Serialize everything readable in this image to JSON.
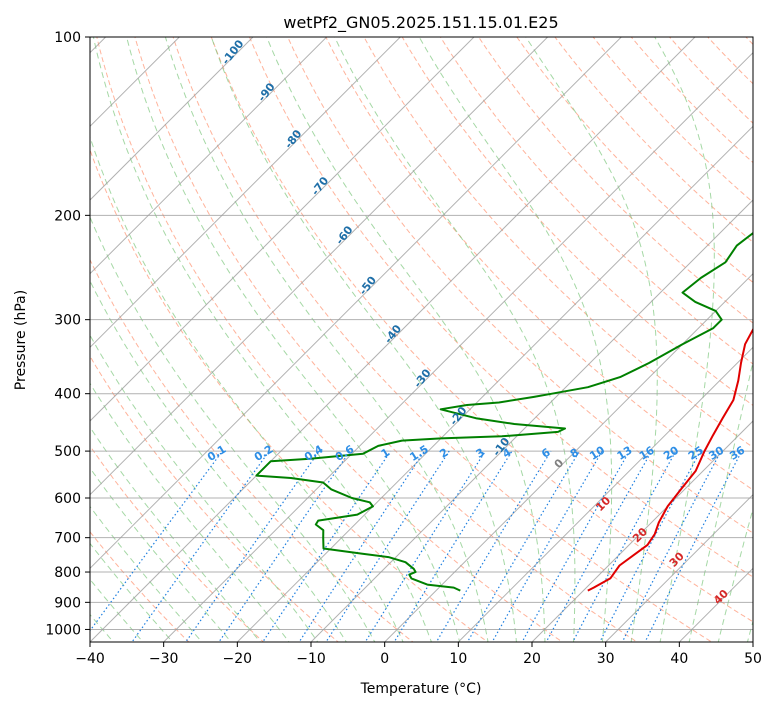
{
  "chart_data": {
    "type": "line",
    "title": "wetPf2_GN05.2025.151.15.01.E25",
    "xlabel": "Temperature (°C)",
    "ylabel": "Pressure (hPa)",
    "xlim": [
      -40,
      50
    ],
    "ylim": [
      1050,
      100
    ],
    "y_scale": "log",
    "grid": true,
    "x_ticks": [
      "−40",
      "−30",
      "−20",
      "−10",
      "0",
      "10",
      "20",
      "30",
      "40",
      "50"
    ],
    "y_ticks": [
      "100",
      "200",
      "300",
      "400",
      "500",
      "600",
      "700",
      "800",
      "900",
      "1000"
    ],
    "series": [
      {
        "color": "#e00000",
        "points": [
          [
            20.6,
            860
          ],
          [
            21,
            850
          ],
          [
            22,
            820
          ],
          [
            21.5,
            780
          ],
          [
            22.5,
            720
          ],
          [
            22,
            690
          ],
          [
            21,
            660
          ],
          [
            20,
            620
          ],
          [
            19.5,
            580
          ],
          [
            19,
            540
          ],
          [
            17.5,
            500
          ],
          [
            16.5,
            470
          ],
          [
            15.5,
            440
          ],
          [
            14.5,
            410
          ],
          [
            12.5,
            380
          ],
          [
            10.5,
            355
          ],
          [
            8.5,
            330
          ],
          [
            7.5,
            310
          ],
          [
            6.5,
            290
          ],
          [
            5.5,
            270
          ],
          [
            4.5,
            250
          ],
          [
            3.5,
            230
          ],
          [
            3,
            210
          ],
          [
            3,
            195
          ],
          [
            3.3,
            175
          ],
          [
            3.5,
            160
          ],
          [
            3.3,
            145
          ],
          [
            3,
            130
          ],
          [
            3,
            125
          ],
          [
            3.3,
            115
          ],
          [
            6,
            107
          ],
          [
            9.5,
            100
          ]
        ]
      },
      {
        "color": "#008000",
        "points": [
          [
            3.3,
            860
          ],
          [
            2,
            850
          ],
          [
            -2,
            840
          ],
          [
            -5,
            820
          ],
          [
            -5.8,
            808
          ],
          [
            -5.3,
            800
          ],
          [
            -6,
            790
          ],
          [
            -8,
            770
          ],
          [
            -11,
            755
          ],
          [
            -15,
            745
          ],
          [
            -21,
            730
          ],
          [
            -22.5,
            700
          ],
          [
            -23.5,
            680
          ],
          [
            -25.3,
            665
          ],
          [
            -25.5,
            655
          ],
          [
            -24,
            650
          ],
          [
            -21,
            640
          ],
          [
            -20,
            620
          ],
          [
            -21,
            610
          ],
          [
            -24,
            600
          ],
          [
            -28,
            580
          ],
          [
            -30,
            565
          ],
          [
            -35,
            555
          ],
          [
            -40,
            550
          ],
          [
            -40,
            520
          ],
          [
            -35,
            515
          ],
          [
            -28.5,
            505
          ],
          [
            -27.5,
            490
          ],
          [
            -25,
            480
          ],
          [
            -20,
            476
          ],
          [
            -12,
            472
          ],
          [
            -5,
            464
          ],
          [
            -4.5,
            458
          ],
          [
            -12,
            450
          ],
          [
            -18,
            440
          ],
          [
            -24,
            425
          ],
          [
            -21,
            418
          ],
          [
            -17,
            414
          ],
          [
            -13,
            405
          ],
          [
            -11,
            400
          ],
          [
            -7,
            390
          ],
          [
            -4,
            375
          ],
          [
            -2,
            355
          ],
          [
            0,
            330
          ],
          [
            2,
            310
          ],
          [
            2,
            300
          ],
          [
            0,
            290
          ],
          [
            -4,
            280
          ],
          [
            -7,
            270
          ],
          [
            -6.5,
            255
          ],
          [
            -5.3,
            240
          ],
          [
            -6,
            225
          ],
          [
            -5.3,
            210
          ],
          [
            -5.3,
            195
          ],
          [
            -5,
            180
          ],
          [
            -6.7,
            165
          ],
          [
            -6,
            150
          ],
          [
            -4,
            138
          ],
          [
            -2.3,
            125
          ],
          [
            0.8,
            115
          ],
          [
            1.6,
            105
          ],
          [
            1.6,
            100
          ]
        ]
      }
    ],
    "dry_adiabat_labels": [
      "-100",
      "-90",
      "-80",
      "-70",
      "-60",
      "-50",
      "-40",
      "-30",
      "-20",
      "-10"
    ],
    "mixing_ratio_labels": [
      "0.1",
      "0.2",
      "0.4",
      "0.6",
      "1",
      "1.5",
      "2",
      "3",
      "4",
      "6",
      "8",
      "10",
      "13",
      "16",
      "20",
      "25",
      "30",
      "36"
    ],
    "moist_adiabat_labels": [
      "0",
      "10",
      "20",
      "30",
      "40"
    ],
    "colors": {
      "temperature": "#e00000",
      "dewpoint": "#008000",
      "isotherm": "#9e9e9e",
      "isobar": "#9e9e9e",
      "dry_adiabat": "#ff9a7a",
      "moist_adiabat": "#7fc77f",
      "mixing_ratio": "#1e7fe0",
      "dry_label": "#1f6fa8",
      "mixing_label": "#2d8ee6",
      "moist_label": "#d62828"
    }
  }
}
